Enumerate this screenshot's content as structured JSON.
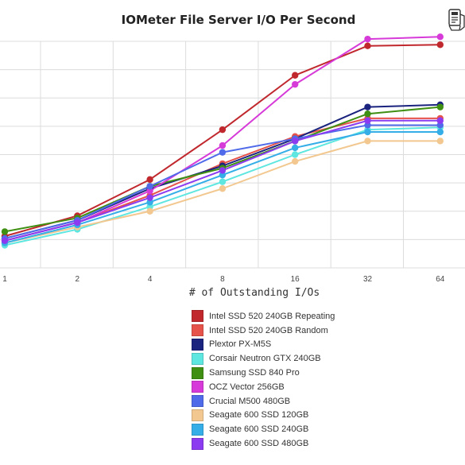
{
  "chart_data": {
    "type": "line",
    "title": "IOMeter File Server I/O Per Second",
    "xlabel": "# of Outstanding I/Os",
    "ylabel": "",
    "categories": [
      "1",
      "2",
      "4",
      "8",
      "16",
      "32",
      "64"
    ],
    "ylim": [
      0,
      100
    ],
    "grid": true,
    "legend_position": "bottom",
    "series": [
      {
        "name": "Intel SSD 520 240GB Repeating",
        "color": "#c0282d",
        "values": [
          14,
          23,
          39,
          61,
          85,
          98,
          98.5
        ]
      },
      {
        "name": "Intel SSD 520 240GB Random",
        "color": "#e5534b",
        "values": [
          12,
          20,
          32,
          46,
          58,
          66,
          66
        ]
      },
      {
        "name": "Plextor PX-M5S",
        "color": "#1a237e",
        "values": [
          13,
          21,
          35,
          45,
          57,
          71,
          72
        ]
      },
      {
        "name": "Corsair Neutron GTX 240GB",
        "color": "#5ee6e0",
        "values": [
          10,
          17,
          27,
          38,
          50,
          61,
          62
        ]
      },
      {
        "name": "Samsung SSD 840 Pro",
        "color": "#3f8f13",
        "values": [
          16,
          22,
          36,
          44,
          56,
          68,
          71
        ]
      },
      {
        "name": "OCZ Vector 256GB",
        "color": "#d63ad8",
        "values": [
          12,
          20,
          34,
          54,
          81,
          101,
          102
        ]
      },
      {
        "name": "Crucial M500 480GB",
        "color": "#4f6bea",
        "values": [
          13,
          21,
          36,
          51,
          57,
          63,
          63
        ]
      },
      {
        "name": "Seagate 600 SSD 120GB",
        "color": "#f2c890",
        "values": [
          11,
          18,
          25,
          35,
          47,
          56,
          56
        ]
      },
      {
        "name": "Seagate 600 SSD 240GB",
        "color": "#35aee8",
        "values": [
          11,
          19,
          29,
          41,
          53,
          60,
          60
        ]
      },
      {
        "name": "Seagate 600 SSD 480GB",
        "color": "#8c3cf0",
        "values": [
          12,
          20,
          31,
          43,
          56,
          65,
          65
        ]
      }
    ]
  }
}
